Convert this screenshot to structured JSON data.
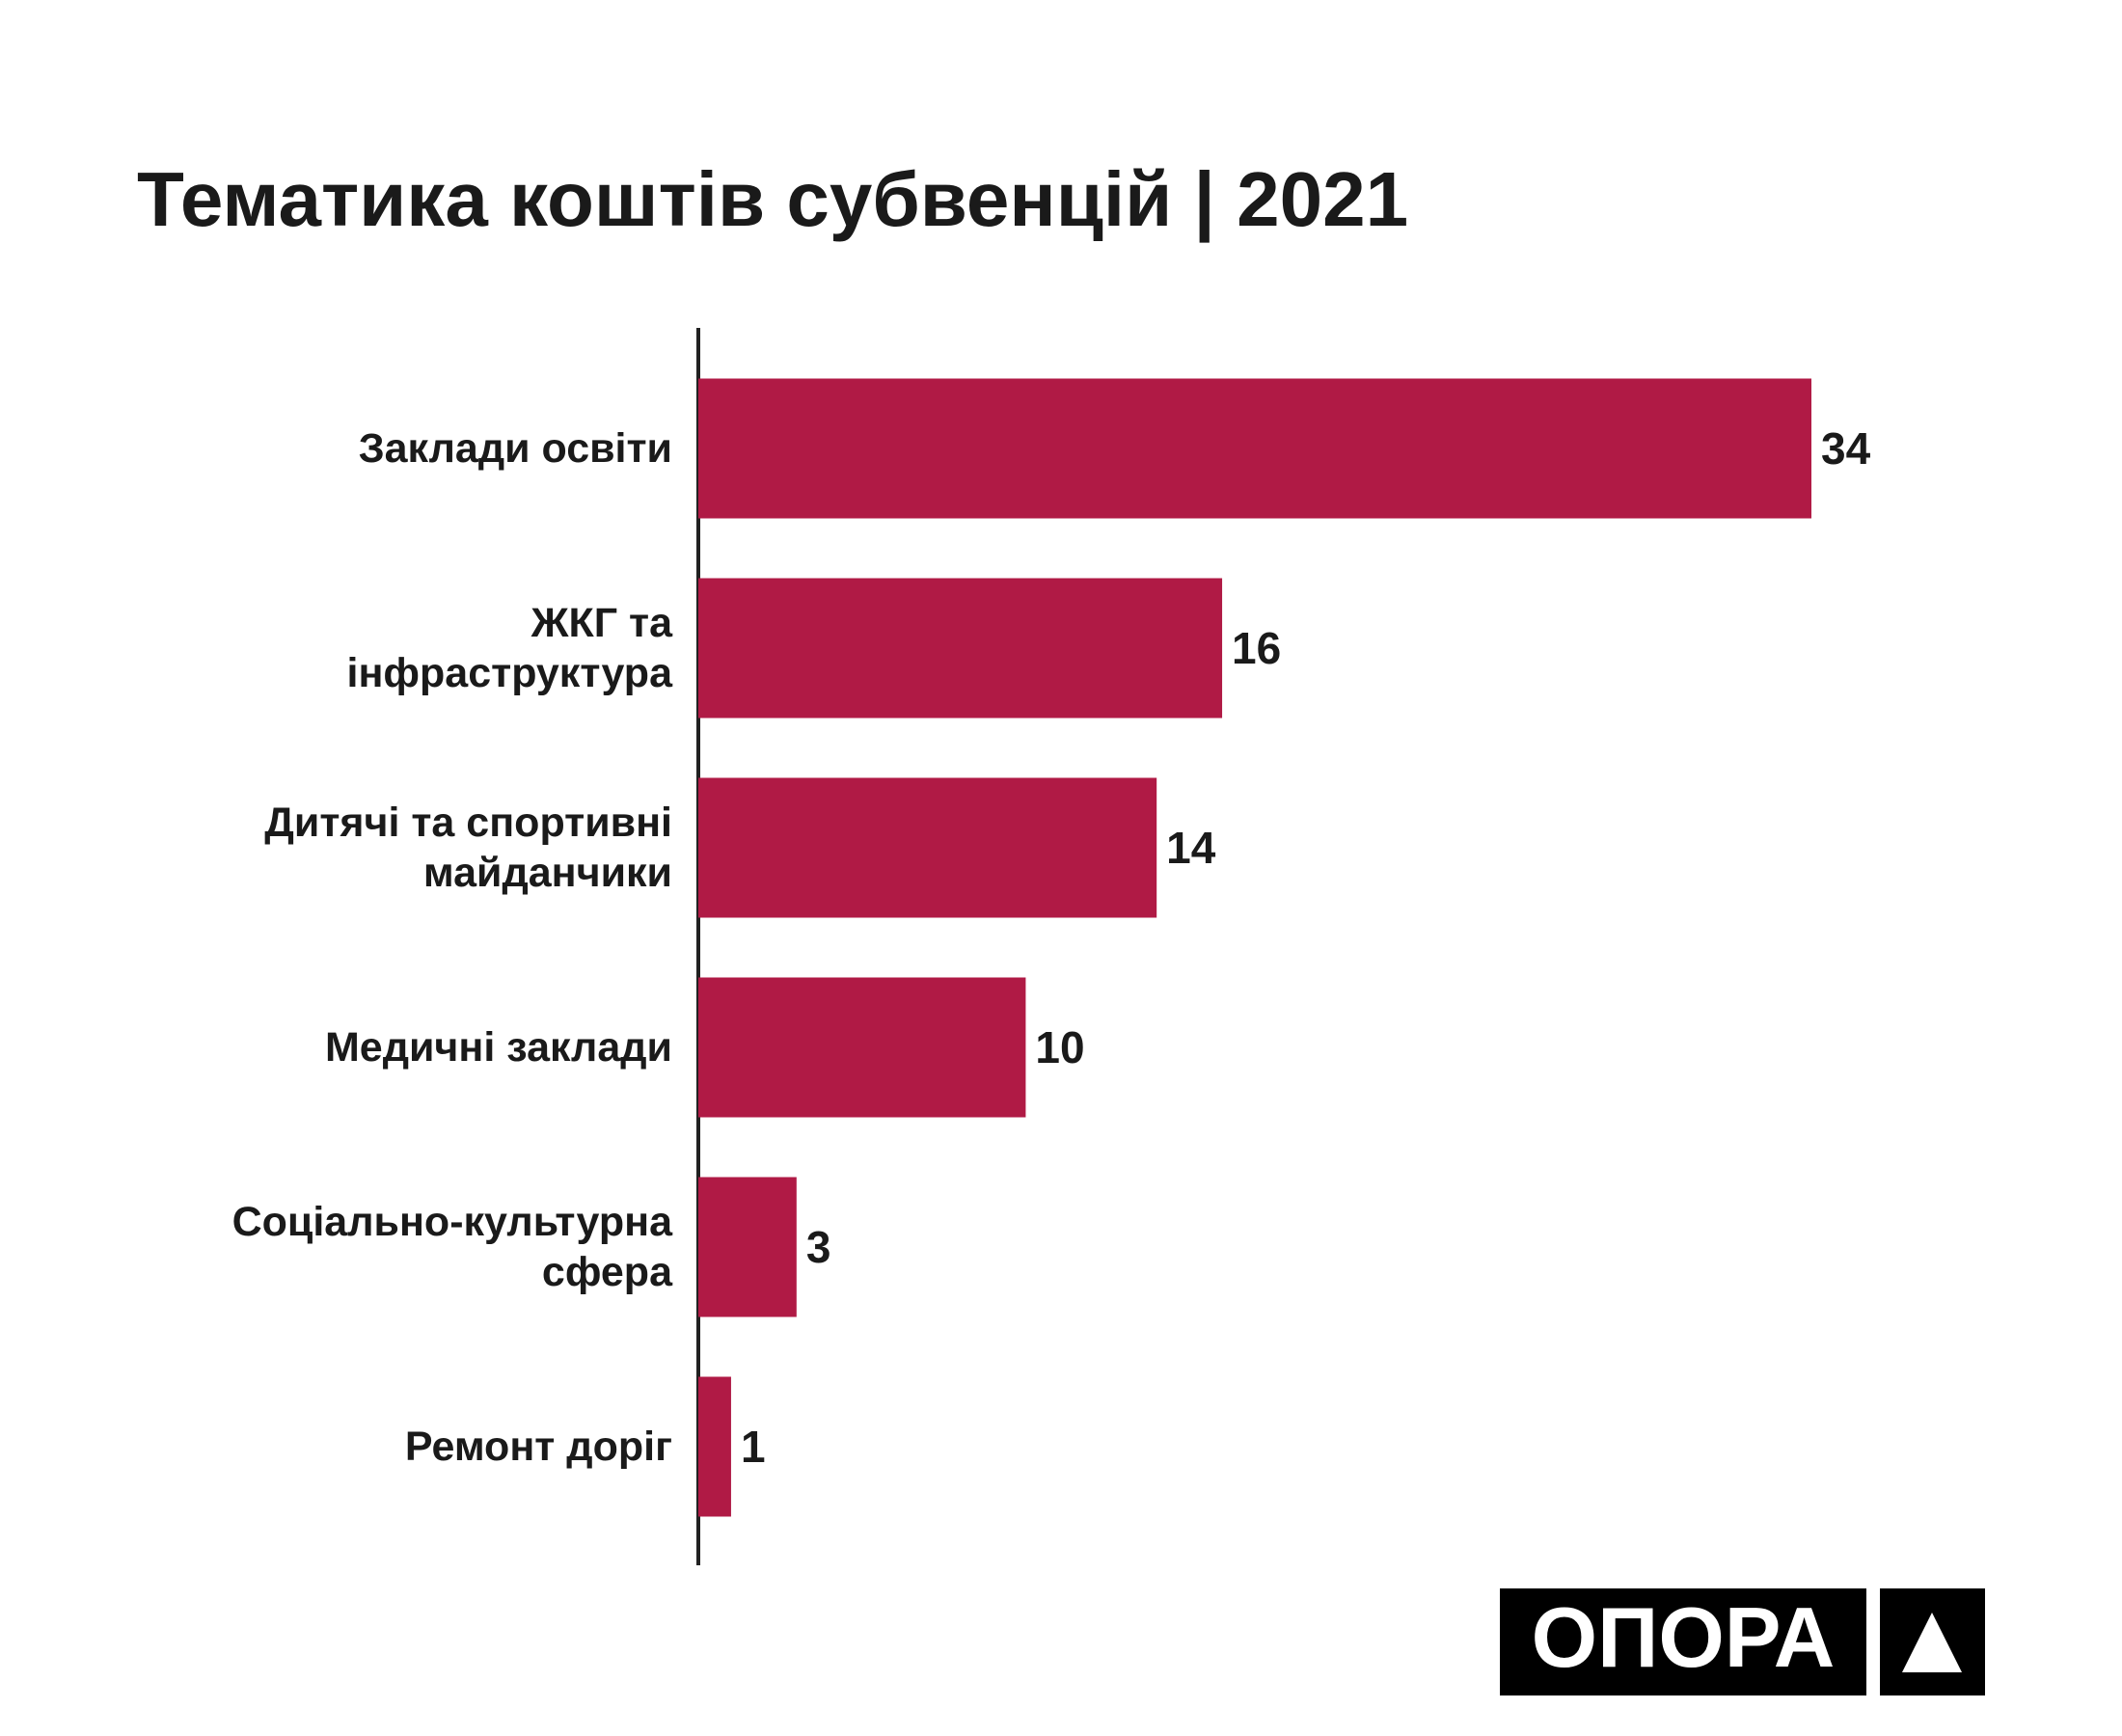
{
  "chart_data": {
    "type": "bar",
    "orientation": "horizontal",
    "title": "Тематика коштів субвенцій | 2021",
    "categories": [
      "Заклади освіти",
      "ЖКГ та\nінфраструктура",
      "Дитячі та спортивні\nмайданчики",
      "Медичні заклади",
      "Соціально-культурна\nсфера",
      "Ремонт доріг"
    ],
    "values": [
      34,
      16,
      14,
      10,
      3,
      1
    ],
    "color": "#b01a45"
  },
  "logo": "ОПОРА"
}
